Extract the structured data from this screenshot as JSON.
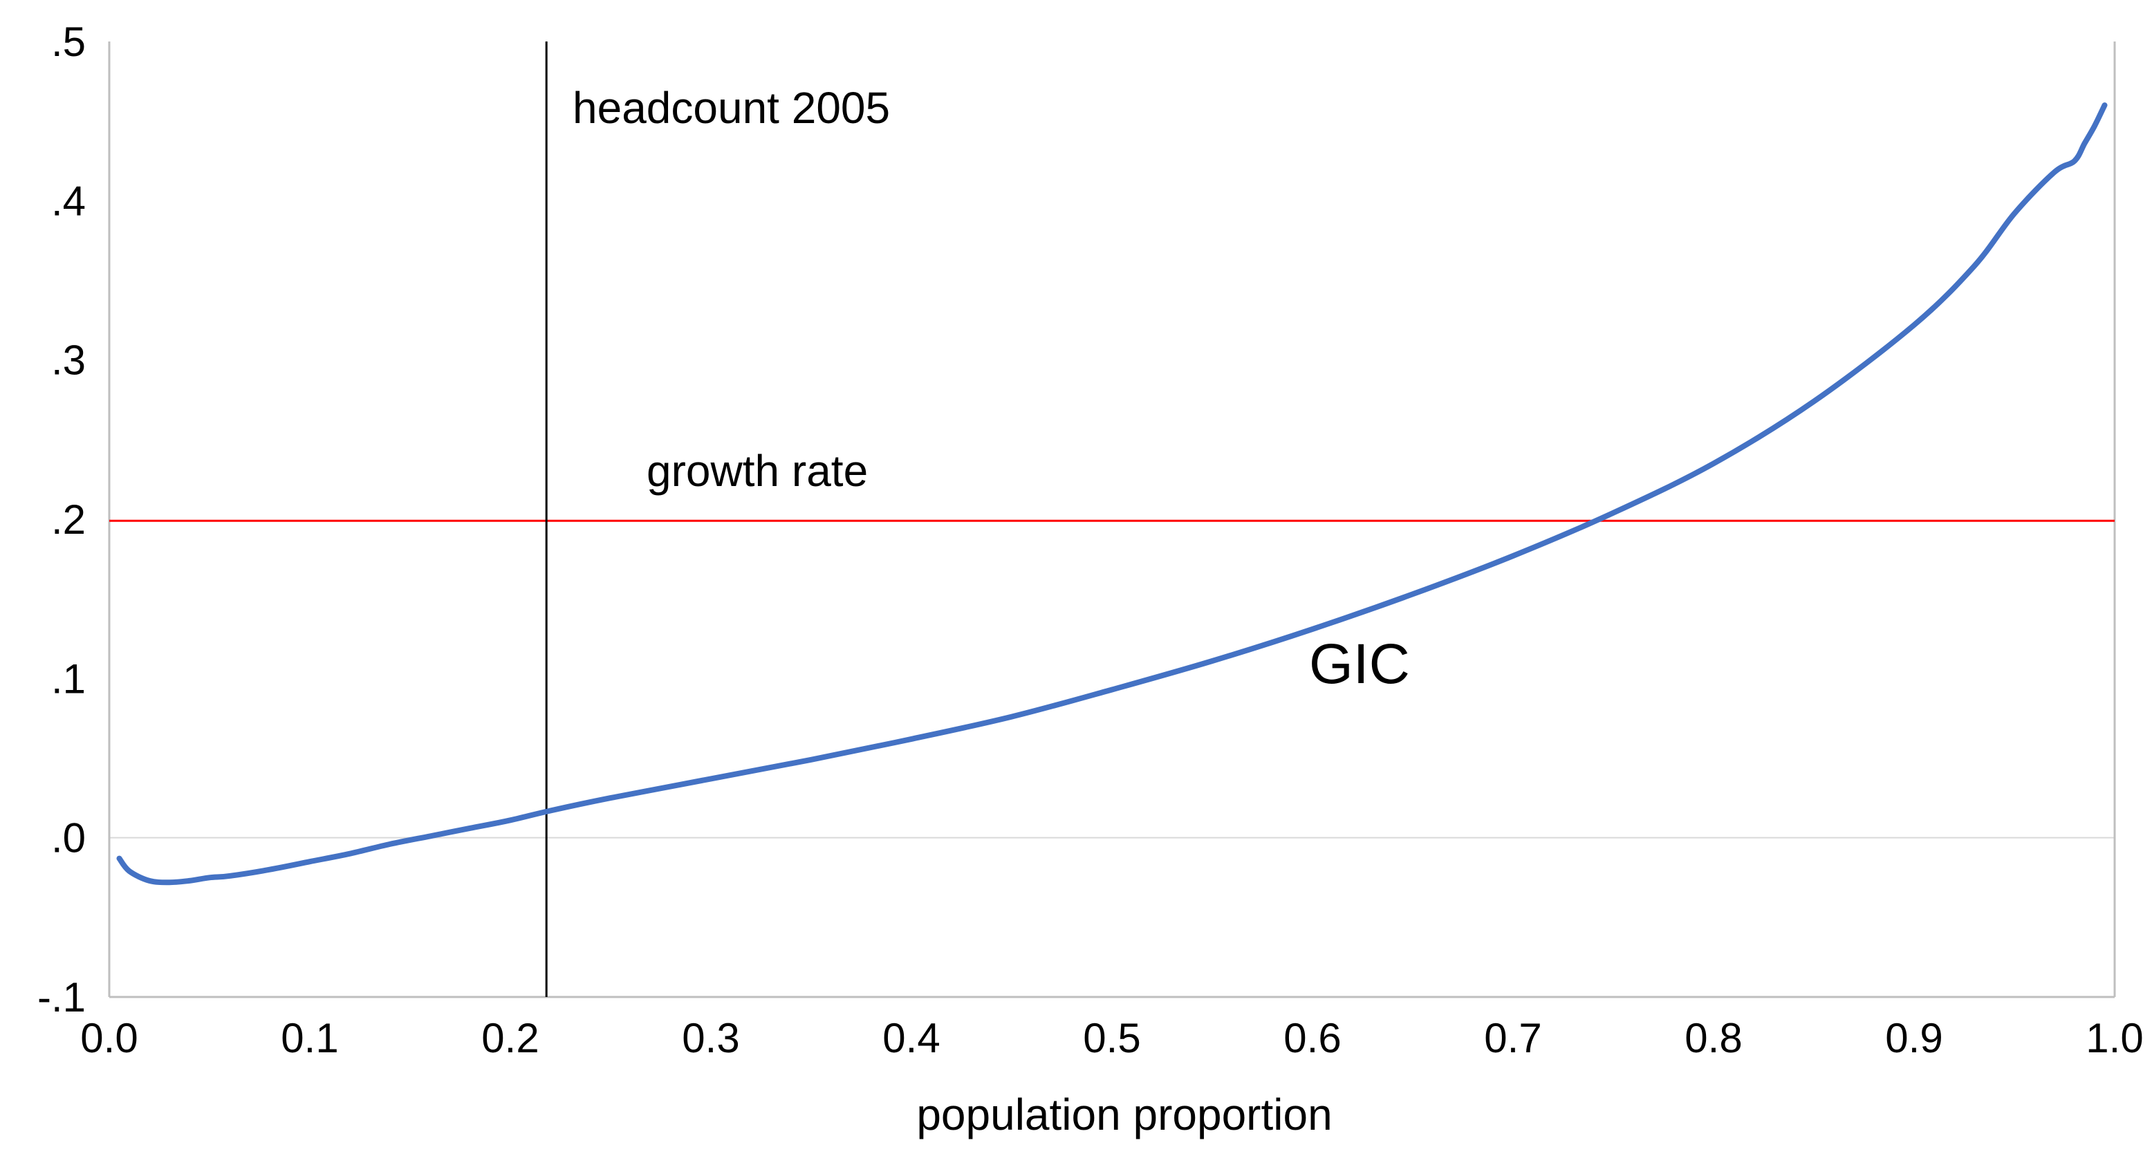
{
  "chart_data": {
    "type": "line",
    "title": "",
    "xlabel": "population proportion",
    "ylabel": "",
    "xlim": [
      0.0,
      1.0
    ],
    "ylim": [
      -0.1,
      0.5
    ],
    "x_ticks": [
      0.0,
      0.1,
      0.2,
      0.3,
      0.4,
      0.5,
      0.6,
      0.7,
      0.8,
      0.9,
      1.0
    ],
    "x_tick_labels": [
      "0.0",
      "0.1",
      "0.2",
      "0.3",
      "0.4",
      "0.5",
      "0.6",
      "0.7",
      "0.8",
      "0.9",
      "1.0"
    ],
    "y_ticks": [
      -0.1,
      0.0,
      0.1,
      0.2,
      0.3,
      0.4,
      0.5
    ],
    "y_tick_labels": [
      "-.1",
      ".0",
      ".1",
      ".2",
      ".3",
      ".4",
      ".5"
    ],
    "grid": false,
    "series": [
      {
        "name": "GIC",
        "color": "#4472C4",
        "x": [
          0.005,
          0.01,
          0.02,
          0.03,
          0.04,
          0.05,
          0.06,
          0.08,
          0.1,
          0.12,
          0.14,
          0.16,
          0.18,
          0.2,
          0.22,
          0.25,
          0.3,
          0.35,
          0.4,
          0.45,
          0.5,
          0.55,
          0.6,
          0.65,
          0.7,
          0.75,
          0.8,
          0.85,
          0.9,
          0.93,
          0.95,
          0.97,
          0.98,
          0.985,
          0.99,
          0.995
        ],
        "values": [
          -0.013,
          -0.021,
          -0.027,
          -0.028,
          -0.027,
          -0.025,
          -0.024,
          -0.02,
          -0.015,
          -0.01,
          -0.004,
          0.001,
          0.006,
          0.011,
          0.017,
          0.025,
          0.037,
          0.049,
          0.062,
          0.076,
          0.093,
          0.111,
          0.131,
          0.153,
          0.177,
          0.204,
          0.235,
          0.274,
          0.322,
          0.359,
          0.392,
          0.418,
          0.425,
          0.436,
          0.447,
          0.46
        ]
      }
    ],
    "reference_lines": [
      {
        "name": "growth rate",
        "orientation": "horizontal",
        "value": 0.199,
        "color": "#FF0000"
      },
      {
        "name": "headcount 2005",
        "orientation": "vertical",
        "value": 0.218,
        "color": "#000000"
      },
      {
        "name": "zero",
        "orientation": "horizontal",
        "value": 0.0,
        "color": "#D9D9D9"
      }
    ],
    "annotations": {
      "headcount": "headcount 2005",
      "growth_rate": "growth rate",
      "curve_label": "GIC"
    }
  }
}
